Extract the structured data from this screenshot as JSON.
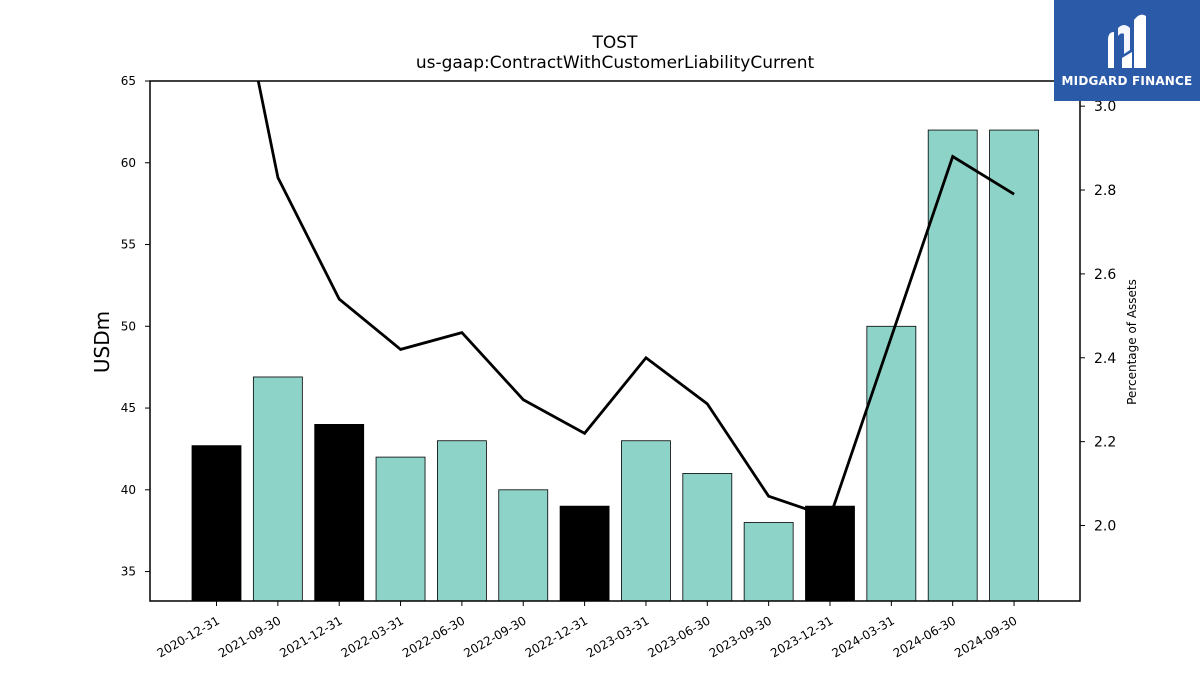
{
  "chart_data": {
    "type": "bar",
    "title": "TOST",
    "subtitle": "us-gaap:ContractWithCustomerLiabilityCurrent",
    "ylabel": "USDm",
    "y2label": "Percentage of Assets",
    "categories": [
      "2020-12-31",
      "2021-09-30",
      "2021-12-31",
      "2022-03-31",
      "2022-06-30",
      "2022-09-30",
      "2022-12-31",
      "2023-03-31",
      "2023-06-30",
      "2023-09-30",
      "2023-12-31",
      "2024-03-31",
      "2024-06-30",
      "2024-09-30"
    ],
    "series": [
      {
        "type": "bar",
        "values": [
          42.7,
          46.9,
          44.0,
          42.0,
          43.0,
          40.0,
          39.0,
          43.0,
          41.0,
          38.0,
          39.0,
          50.0,
          62.0,
          62.0
        ],
        "colors": [
          "#000000",
          "#8dd3c7",
          "#000000",
          "#8dd3c7",
          "#8dd3c7",
          "#8dd3c7",
          "#000000",
          "#8dd3c7",
          "#8dd3c7",
          "#8dd3c7",
          "#000000",
          "#8dd3c7",
          "#8dd3c7",
          "#8dd3c7"
        ]
      },
      {
        "type": "line",
        "axis": "right",
        "color": "#000000",
        "values": [
          3.55,
          2.83,
          2.54,
          2.42,
          2.46,
          2.3,
          2.22,
          2.4,
          2.29,
          2.07,
          2.02,
          2.45,
          2.88,
          2.79
        ]
      }
    ],
    "ylim": [
      33.2,
      65.0
    ],
    "y2lim": [
      1.82,
      3.06
    ],
    "yticks": [
      35,
      40,
      45,
      50,
      55,
      60,
      65
    ],
    "y2ticks": [
      2.0,
      2.2,
      2.4,
      2.6,
      2.8,
      3.0
    ],
    "y2ticklabels": [
      "2.0",
      "2.2",
      "2.4",
      "2.6",
      "2.8",
      "3.0"
    ],
    "grid": false
  },
  "logo": {
    "text": "MIDGARD FINANCE",
    "background": "#2b5aa8"
  }
}
